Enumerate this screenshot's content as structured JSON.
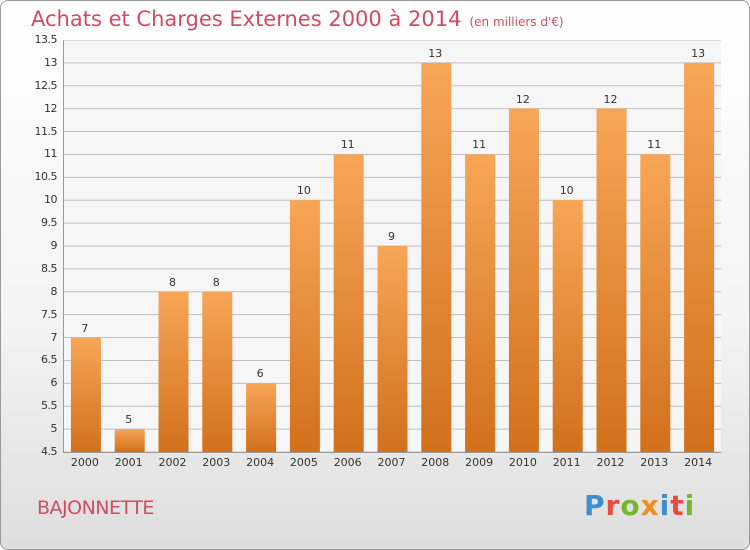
{
  "header": {
    "title": "Achats et Charges Externes 2000 à 2014",
    "subtitle": "(en milliers d'€)"
  },
  "commune": "BAJONNETTE",
  "logo": {
    "text": "Proxiti",
    "letters": [
      {
        "char": "P",
        "color": "#3d8fd0"
      },
      {
        "char": "r",
        "color": "#e94b3c"
      },
      {
        "char": "o",
        "color": "#77b82a"
      },
      {
        "char": "x",
        "color": "#f28c1f"
      },
      {
        "char": "i",
        "color": "#3d8fd0"
      },
      {
        "char": "t",
        "color": "#e94b3c"
      },
      {
        "char": "i",
        "color": "#77b82a"
      }
    ]
  },
  "colors": {
    "title": "#d24b63",
    "bar_top": "#f7a657",
    "bar_bottom": "#d2701b",
    "grid": "#bfbfbf"
  },
  "chart_data": {
    "type": "bar",
    "title": "Achats et Charges Externes 2000 à 2014",
    "subtitle": "(en milliers d'€)",
    "xlabel": "",
    "ylabel": "",
    "categories": [
      "2000",
      "2001",
      "2002",
      "2003",
      "2004",
      "2005",
      "2006",
      "2007",
      "2008",
      "2009",
      "2010",
      "2011",
      "2012",
      "2013",
      "2014"
    ],
    "values": [
      7,
      5,
      8,
      8,
      6,
      10,
      11,
      9,
      13,
      11,
      12,
      10,
      12,
      11,
      13
    ],
    "ylim": [
      4.5,
      13.5
    ],
    "yticks": [
      "4.5",
      "5",
      "5.5",
      "6",
      "6.5",
      "7",
      "7.5",
      "8",
      "8.5",
      "9",
      "9.5",
      "10",
      "10.5",
      "11",
      "11.5",
      "12",
      "12.5",
      "13",
      "13.5"
    ],
    "grid": true,
    "data_labels": true
  }
}
